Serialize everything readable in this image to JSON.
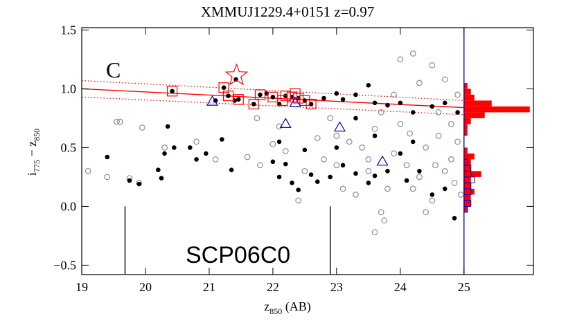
{
  "chart_data": {
    "type": "scatter",
    "title": "XMMUJ1229.4+0151 z=0.97",
    "x_label": {
      "main": "z",
      "sub": "850",
      "suffix": " (AB)"
    },
    "y_label": {
      "text1": "i",
      "sub1": "775",
      "text2": " − z",
      "sub2": "850"
    },
    "xlim": [
      19,
      26.09
    ],
    "ylim": [
      -0.58,
      1.52
    ],
    "xticks": [
      19,
      20,
      21,
      22,
      23,
      24,
      25
    ],
    "yticks": [
      {
        "value": 1.5,
        "label": "1.5"
      },
      {
        "value": 1.0,
        "label": "1.0"
      },
      {
        "value": 0.5,
        "label": "0.5"
      },
      {
        "value": 0.0,
        "label": "0.0"
      },
      {
        "value": -0.5,
        "label": "−0.5"
      }
    ],
    "annotations": [
      {
        "text": "C",
        "color": "#000000"
      },
      {
        "text": "SCP06C0",
        "color": "#ff0000"
      }
    ],
    "series": [
      {
        "marker": "open-circle",
        "color": "#8090a0",
        "x": [
          19.1,
          19.4,
          19.55,
          19.6,
          19.75,
          19.9,
          19.95,
          20.3,
          20.8,
          21.1,
          21.6,
          21.8,
          21.75,
          22.1,
          22.0,
          22.2,
          22.5,
          22.7,
          22.8,
          23.0,
          23.1,
          23.2,
          23.3,
          23.4,
          23.5,
          23.6,
          23.7,
          23.8,
          23.9,
          24.0,
          24.1,
          24.2,
          24.3,
          24.4,
          24.5,
          24.5,
          24.6,
          24.7,
          24.7,
          24.8,
          24.85,
          24.9,
          24.95,
          24.9,
          23.6,
          23.75,
          24.0,
          23.9,
          24.3,
          22.9,
          23.5,
          24.6,
          24.2,
          23.0,
          22.4,
          23.7,
          24.4,
          24.8,
          24.55,
          24.15
        ],
        "values": [
          0.3,
          0.25,
          0.72,
          0.72,
          0.24,
          0.2,
          0.67,
          0.5,
          0.55,
          0.4,
          0.42,
          0.35,
          0.75,
          0.68,
          0.53,
          0.47,
          0.3,
          0.58,
          0.4,
          0.35,
          0.15,
          0.55,
          0.1,
          0.5,
          0.4,
          0.66,
          0.8,
          0.15,
          0.45,
          0.7,
          0.35,
          1.3,
          0.25,
          0.5,
          1.2,
          0.05,
          0.6,
          1.08,
          0.3,
          0.4,
          0.2,
          0.55,
          0.1,
          0.95,
          -0.22,
          -0.12,
          1.25,
          0.95,
          1.05,
          0.75,
          0.3,
          0.8,
          0.15,
          0.6,
          0.05,
          -0.05,
          -0.05,
          0.7,
          0.35,
          0.62
        ]
      },
      {
        "marker": "dot",
        "color": "#000000",
        "x": [
          19.4,
          19.75,
          19.9,
          20.2,
          20.25,
          20.3,
          20.35,
          20.45,
          20.7,
          20.8,
          20.95,
          21.2,
          21.35,
          22.0,
          22.1,
          22.2,
          22.3,
          22.4,
          22.6,
          22.7,
          22.9,
          23.1,
          23.3,
          23.5,
          23.6,
          23.8,
          24.1,
          24.3,
          24.5,
          24.7,
          24.85,
          22.5,
          23.0,
          23.6,
          24.2,
          24.0,
          23.3,
          22.1,
          20.42,
          21.1,
          21.23,
          21.3,
          21.4,
          21.46,
          21.7,
          21.8,
          21.9,
          22.0,
          22.2,
          22.3,
          22.4,
          22.5,
          22.6,
          22.8,
          23.0,
          23.1,
          23.3,
          23.5,
          23.6,
          23.8,
          24.0,
          24.2,
          24.5,
          24.7,
          24.9,
          22.1,
          21.42
        ],
        "values": [
          0.42,
          0.22,
          0.19,
          0.31,
          0.24,
          0.45,
          0.68,
          0.5,
          0.5,
          0.4,
          0.45,
          0.57,
          0.31,
          0.38,
          0.25,
          0.36,
          0.2,
          0.14,
          0.27,
          0.21,
          0.25,
          0.35,
          0.28,
          0.2,
          0.26,
          0.3,
          0.22,
          0.3,
          0.1,
          0.15,
          -0.1,
          0.48,
          0.5,
          0.6,
          0.55,
          0.45,
          0.75,
          0.55,
          0.98,
          0.9,
          1.01,
          0.94,
          0.9,
          0.91,
          0.87,
          0.95,
          0.96,
          0.93,
          0.94,
          0.93,
          0.92,
          0.9,
          0.87,
          0.92,
          0.96,
          0.91,
          0.95,
          1.03,
          0.88,
          0.86,
          0.88,
          0.8,
          0.85,
          0.88,
          0.8,
          0.87,
          1.08
        ]
      },
      {
        "marker": "square",
        "color": "#ff0000",
        "x": [
          20.42,
          21.23,
          21.3,
          21.46,
          21.7,
          21.8,
          22.0,
          22.2,
          22.3,
          22.4,
          22.5,
          22.6,
          22.35,
          22.15
        ],
        "values": [
          0.98,
          1.01,
          0.94,
          0.91,
          0.87,
          0.95,
          0.93,
          0.94,
          0.93,
          0.92,
          0.9,
          0.87,
          0.96,
          0.9
        ]
      },
      {
        "marker": "triangle",
        "color": "#0000cc",
        "x": [
          21.05,
          22.2,
          23.05,
          23.72,
          22.35
        ],
        "values": [
          0.89,
          0.7,
          0.67,
          0.38,
          0.88
        ]
      },
      {
        "marker": "star",
        "color": "#ff0000",
        "x": [
          21.43
        ],
        "values": [
          1.09
        ]
      }
    ],
    "lines": [
      {
        "color": "#ff0000",
        "style": "solid",
        "x": [
          19,
          25
        ],
        "values": [
          1.0,
          0.84
        ]
      },
      {
        "color": "#ff0000",
        "style": "dotted",
        "x": [
          19,
          25
        ],
        "values": [
          1.07,
          0.9
        ]
      },
      {
        "color": "#ff0000",
        "style": "dotted",
        "x": [
          19,
          25
        ],
        "values": [
          0.93,
          0.78
        ]
      },
      {
        "color": "#000000",
        "style": "solid",
        "x": [
          19.68,
          19.68
        ],
        "values": [
          0.0,
          -0.58
        ]
      },
      {
        "color": "#000000",
        "style": "solid",
        "x": [
          22.9,
          22.9
        ],
        "values": [
          0.0,
          -0.58
        ]
      },
      {
        "color": "#0000cc",
        "style": "solid",
        "x": [
          25,
          25
        ],
        "values": [
          1.52,
          -0.58
        ]
      }
    ],
    "histograms": [
      {
        "color": "#ff0000",
        "fill": true,
        "bins": [
          -0.05,
          0.0,
          0.05,
          0.1,
          0.15,
          0.2,
          0.25,
          0.3,
          0.35,
          0.4,
          0.45,
          0.5,
          0.55,
          0.6,
          0.65,
          0.7,
          0.75,
          0.8,
          0.85,
          0.9,
          0.95,
          1.0,
          1.05
        ],
        "counts": [
          1,
          2,
          2,
          3,
          2,
          2,
          5,
          2,
          2,
          3,
          1,
          0,
          0,
          1,
          1,
          2,
          6,
          19,
          8,
          3,
          2,
          1
        ]
      },
      {
        "color": "#0000cc",
        "fill": false,
        "bins": [
          -0.05,
          0.0,
          0.05,
          0.1,
          0.15,
          0.2,
          0.25,
          0.3,
          0.35,
          0.4
        ],
        "counts": [
          1,
          2,
          1,
          2,
          2,
          3,
          2,
          2,
          1
        ]
      }
    ]
  }
}
